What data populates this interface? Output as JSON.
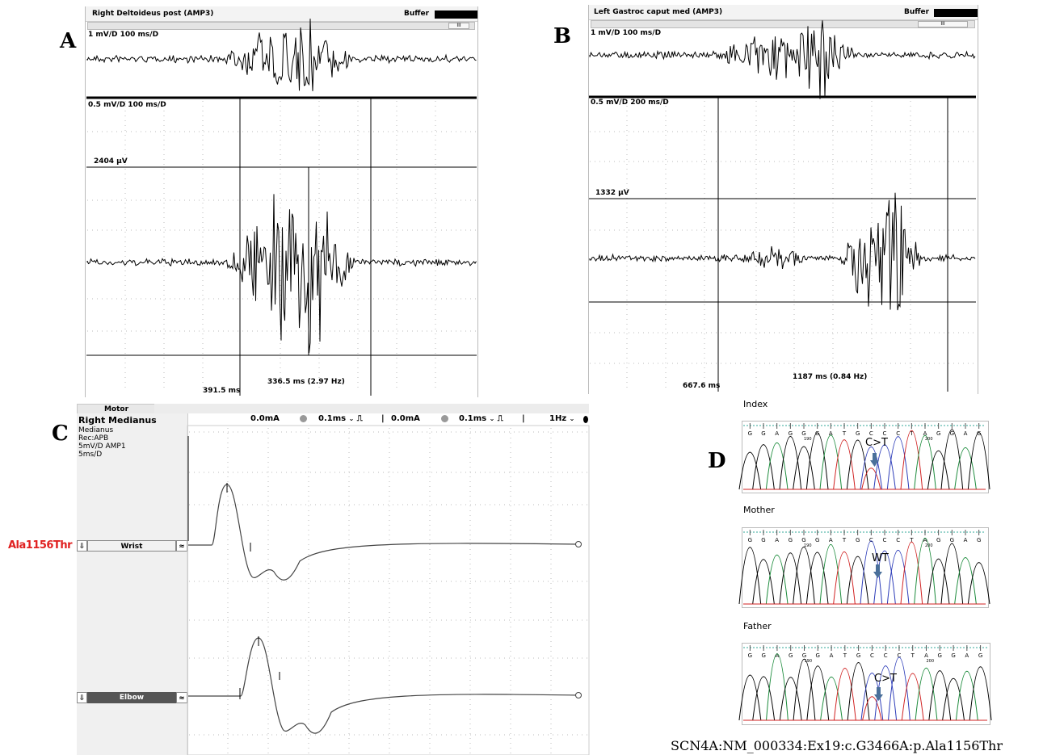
{
  "panels": {
    "a_label": "A",
    "b_label": "B",
    "c_label": "C",
    "d_label": "D"
  },
  "panel_a": {
    "title": "Right Deltoideus post (AMP3)",
    "buffer_label": "Buffer",
    "top_scale": "1 mV/D 100 ms/D",
    "bottom_scale": "0.5 mV/D 100 ms/D",
    "amplitude": "2404 μV",
    "cursor_time": "391.5 ms",
    "interval": "336.5 ms (2.97 Hz)"
  },
  "panel_b": {
    "title": "Left Gastroc caput med (AMP3)",
    "buffer_label": "Buffer",
    "top_scale": "1 mV/D 100 ms/D",
    "bottom_scale": "0.5 mV/D 200 ms/D",
    "amplitude": "1332 μV",
    "cursor_time": "667.6 ms",
    "interval": "1187 ms (0.84 Hz)"
  },
  "panel_c": {
    "tab": "Motor",
    "nerve": "Right Medianus",
    "info_lines": [
      "Medianus",
      "Rec:APB",
      "5mV/D  AMP1",
      "5ms/D"
    ],
    "controls": {
      "current1": "0.0mA",
      "duration1": "0.1ms",
      "current2": "0.0mA",
      "duration2": "0.1ms",
      "freq": "1Hz"
    },
    "wrist_label": "Wrist",
    "elbow_label": "Elbow",
    "variant_label": "Ala1156Thr"
  },
  "panel_d": {
    "index_label": "Index",
    "mother_label": "Mother",
    "father_label": "Father",
    "index_mut": "C>T",
    "mother_mut": "WT",
    "father_mut": "C>T",
    "bases": [
      "G",
      "G",
      "A",
      "G",
      "G",
      "G",
      "A",
      "T",
      "G",
      "C",
      "C",
      "C",
      "T",
      "A",
      "G",
      "G",
      "A",
      "G"
    ],
    "tick_190": "190",
    "tick_200": "200",
    "variant": "SCN4A:NM_000334:Ex19:c.G3466A:p.Ala1156Thr"
  },
  "colors": {
    "variant_red": "#e02020",
    "arrow_blue": "#4a6f9a",
    "seq_green": "#1a8a3a",
    "seq_blue": "#2a3ab8",
    "seq_red": "#d02020"
  }
}
